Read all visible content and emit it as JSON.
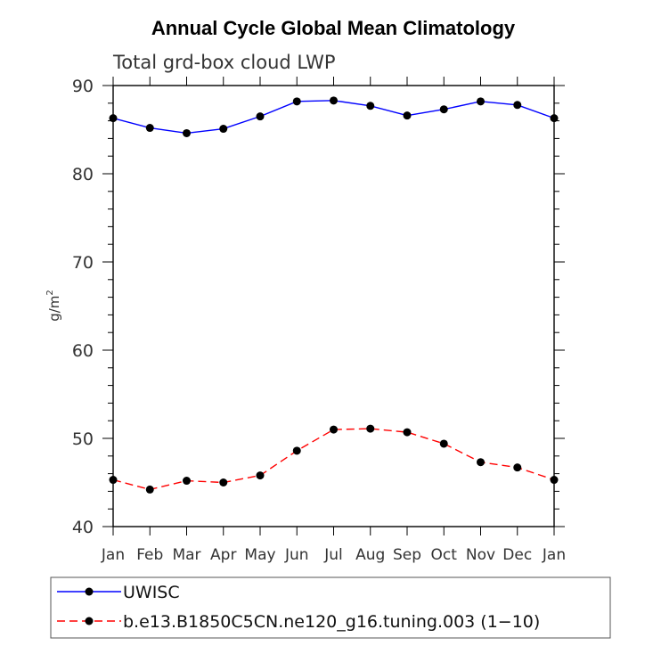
{
  "chart_data": {
    "type": "line",
    "title": "Annual Cycle Global Mean Climatology",
    "subtitle": "Total grd-box cloud LWP",
    "ylabel": "g/m",
    "ylabel_superscript": "2",
    "ylim": [
      40,
      90
    ],
    "yticks": [
      40,
      50,
      60,
      70,
      80,
      90
    ],
    "categories": [
      "Jan",
      "Feb",
      "Mar",
      "Apr",
      "May",
      "Jun",
      "Jul",
      "Aug",
      "Sep",
      "Oct",
      "Nov",
      "Dec",
      "Jan"
    ],
    "legend_placement": "bottom",
    "series": [
      {
        "name": "UWISC",
        "color": "#0000ff",
        "dash": "solid",
        "values": [
          86.3,
          85.2,
          84.6,
          85.1,
          86.5,
          88.2,
          88.3,
          87.7,
          86.6,
          87.3,
          88.2,
          87.8,
          86.3
        ]
      },
      {
        "name": "b.e13.B1850C5CN.ne120_g16.tuning.003 (1−10)",
        "color": "#ff0000",
        "dash": "dashed",
        "values": [
          45.3,
          44.2,
          45.2,
          45.0,
          45.8,
          48.6,
          51.0,
          51.1,
          50.7,
          49.4,
          47.3,
          46.7,
          45.3
        ]
      }
    ]
  }
}
